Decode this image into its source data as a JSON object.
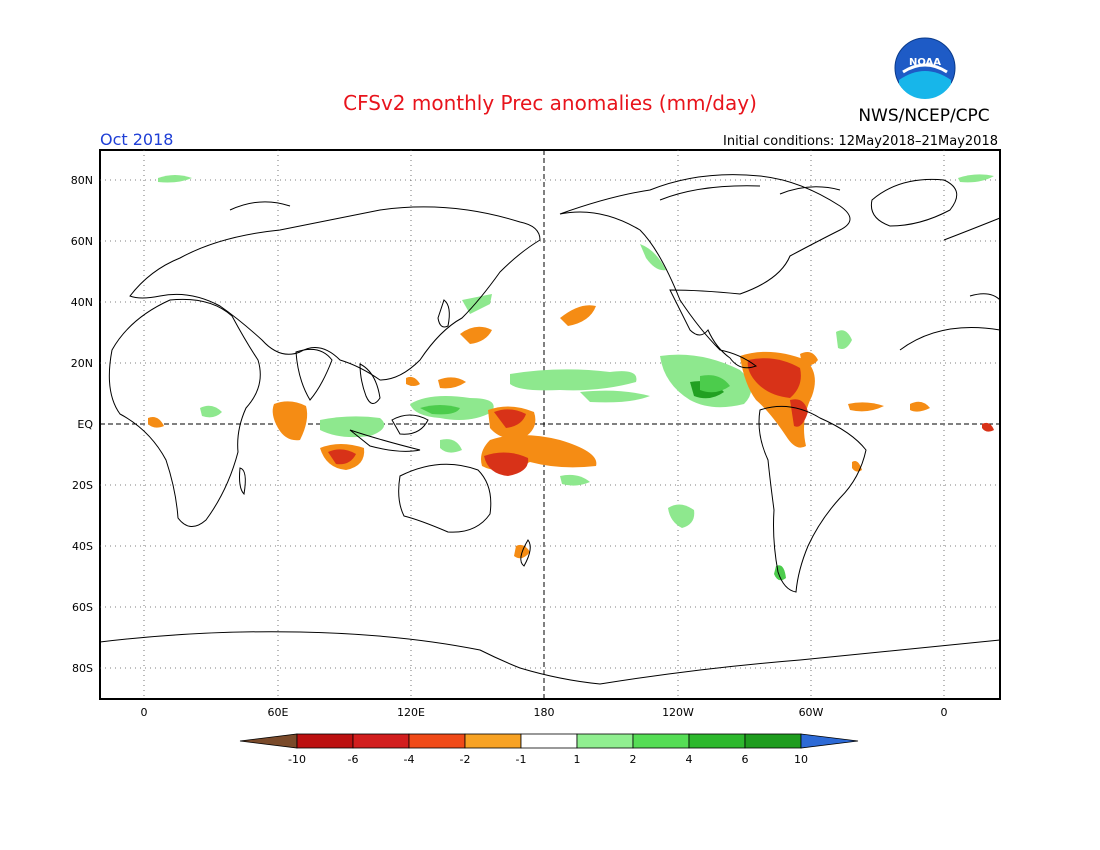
{
  "title": "CFSv2 monthly Prec anomalies (mm/day)",
  "agency": "NWS/NCEP/CPC",
  "logo_text": "NOAA",
  "period": "Oct 2018",
  "initial_conditions": "Initial conditions: 12May2018–21May2018",
  "colors": {
    "title": "#e8141c",
    "period": "#1f3fd6",
    "land_outline": "#000000",
    "dry_strong": "#d83218",
    "dry": "#f58c14",
    "dry_extreme": "#c02014",
    "wet_light": "#8ee88e",
    "wet": "#4ccc4c",
    "wet_strong": "#22a022"
  },
  "map": {
    "lat_labels": [
      "80N",
      "60N",
      "40N",
      "20N",
      "EQ",
      "20S",
      "40S",
      "60S",
      "80S"
    ],
    "lon_labels": [
      "0",
      "60E",
      "120E",
      "180",
      "120W",
      "60W",
      "0"
    ]
  },
  "colorbar": {
    "labels": [
      "-10",
      "-6",
      "-4",
      "-2",
      "-1",
      "1",
      "2",
      "4",
      "6",
      "10"
    ],
    "colors": [
      "#7a4a2a",
      "#bc1010",
      "#d21e1e",
      "#f04a18",
      "#f7a224",
      "#ffffff",
      "#90ef90",
      "#55dd55",
      "#2db82d",
      "#1e9c1e",
      "#2d6ad6"
    ]
  },
  "anomalies": [
    {
      "region": "Caribbean / Central America",
      "category": "dry",
      "level": "-4 to -6"
    },
    {
      "region": "Northern South America",
      "category": "dry",
      "level": "-2 to -4"
    },
    {
      "region": "Western tropical Pacific",
      "category": "dry",
      "level": "-2 to -4"
    },
    {
      "region": "Southwest Pacific",
      "category": "dry",
      "level": "-4 to -6"
    },
    {
      "region": "Bay of Bengal / Indian Ocean",
      "category": "dry",
      "level": "-2 to -4"
    },
    {
      "region": "Eastern tropical Pacific",
      "category": "wet",
      "level": "2 to 4"
    },
    {
      "region": "Central tropical Pacific",
      "category": "wet",
      "level": "1 to 2"
    },
    {
      "region": "Maritime Continent",
      "category": "wet",
      "level": "1 to 2"
    }
  ]
}
